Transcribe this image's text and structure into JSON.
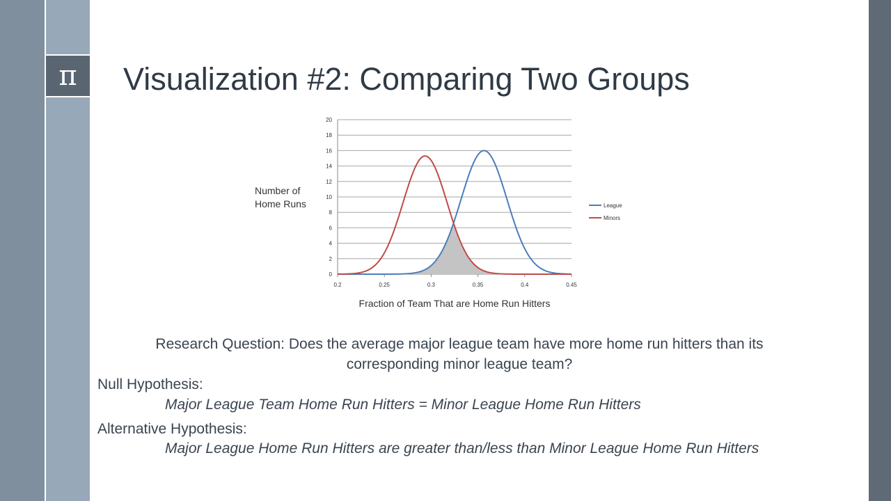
{
  "slide": {
    "icon": "pi-icon",
    "icon_glyph": "π",
    "title": "Visualization #2: Comparing Two Groups",
    "colors": {
      "sidebar": "#7f8f9e",
      "sidebar_light": "#97a8b8",
      "icon_box": "#5a6572",
      "right_bar": "#5f6a76"
    }
  },
  "chart_data": {
    "type": "line",
    "xlabel": "Fraction of Team That are Home Run Hitters",
    "ylabel": "Number of Home Runs",
    "xlim": [
      0.2,
      0.45
    ],
    "ylim": [
      0,
      20
    ],
    "x_ticks": [
      "0.2",
      "0.25",
      "0.3",
      "0.35",
      "0.4",
      "0.45"
    ],
    "y_ticks": [
      "0",
      "2",
      "4",
      "6",
      "8",
      "10",
      "12",
      "14",
      "16",
      "18",
      "20"
    ],
    "grid": true,
    "legend_position": "right",
    "series": [
      {
        "name": "League",
        "color": "#4a7ebb",
        "mean": 0.3565,
        "sd": 0.0245,
        "peak": 16.0
      },
      {
        "name": "Minors",
        "color": "#be4b48",
        "mean": 0.2935,
        "sd": 0.0235,
        "peak": 15.3
      }
    ],
    "overlap_fill": "#c4c4c4"
  },
  "text": {
    "research_question": "Research Question: Does the average major league team have more home run hitters than its corresponding minor league team?",
    "null_label": "Null Hypothesis:",
    "null_text": "Major League Team Home Run Hitters = Minor League Home Run Hitters",
    "alt_label": "Alternative Hypothesis:",
    "alt_text": "Major League Home Run Hitters are greater than/less than Minor League Home Run Hitters"
  }
}
